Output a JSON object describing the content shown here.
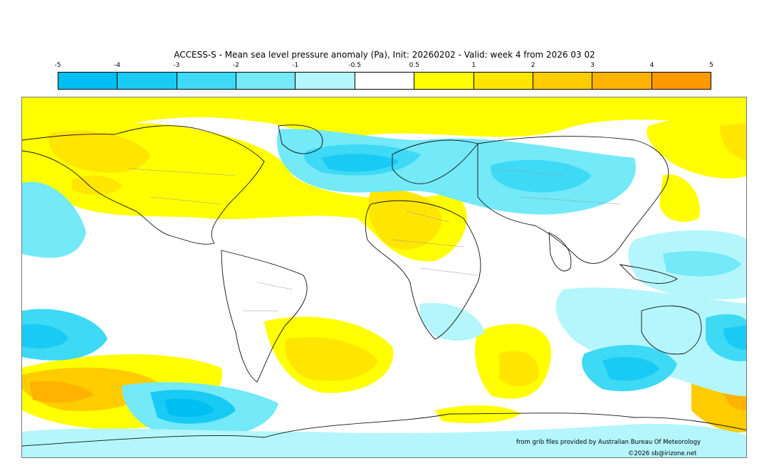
{
  "title": "ACCESS-S - Mean sea level pressure anomaly (Pa), Init: 20260202 - Valid: week 4 from 2026 03 02",
  "legend": {
    "ticks": [
      "-5",
      "-4",
      "-3",
      "-2",
      "-1",
      "-0.5",
      "0.5",
      "1",
      "2",
      "3",
      "4",
      "5"
    ],
    "colors": [
      "#00bff2",
      "#19cbf4",
      "#3ed9f5",
      "#74e9f8",
      "#b4f6fb",
      "#ffffff",
      "#ffff00",
      "#ffe600",
      "#ffcc00",
      "#ffb300",
      "#ff9900"
    ]
  },
  "credits": {
    "source": "from grib files provided by Australian Bureau Of Meteorology",
    "copyright": "©2026 sb@irizone.net"
  }
}
